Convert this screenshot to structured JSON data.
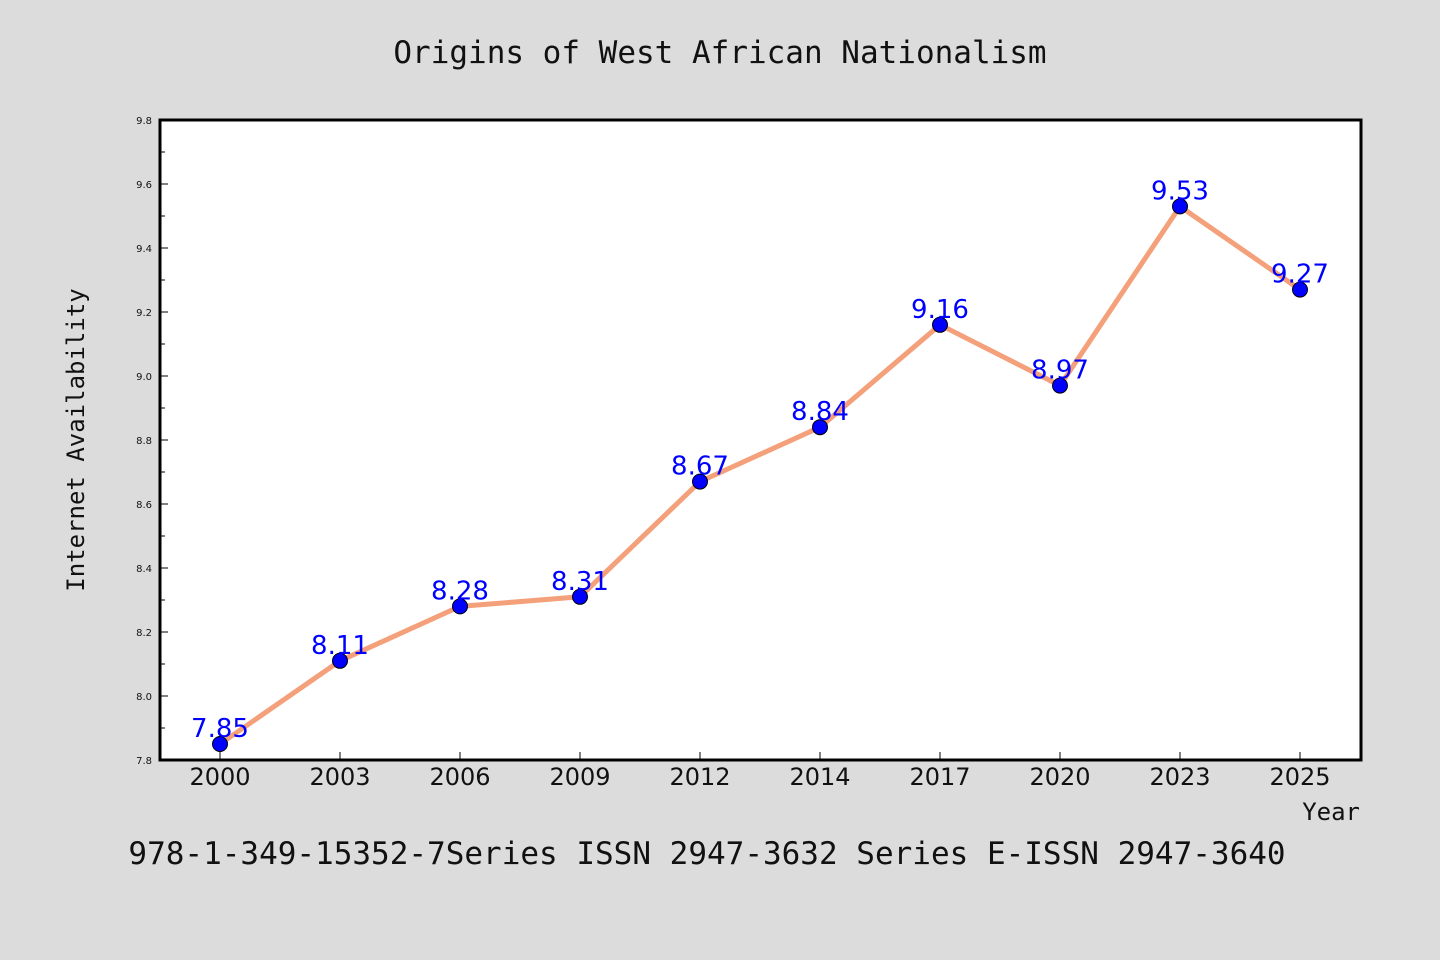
{
  "footer": "978-1-349-15352-7Series ISSN 2947-3632 Series E-ISSN 2947-3640",
  "chart_data": {
    "type": "line",
    "title": "Origins of West African Nationalism",
    "xlabel": "Year",
    "ylabel": "Internet Availability",
    "categories": [
      "2000",
      "2003",
      "2006",
      "2009",
      "2012",
      "2014",
      "2017",
      "2020",
      "2023",
      "2025"
    ],
    "series": [
      {
        "values": [
          7.85,
          8.11,
          8.28,
          8.31,
          8.67,
          8.84,
          9.16,
          8.97,
          9.53,
          9.27
        ],
        "value_labels": [
          "7.85",
          "8.11",
          "8.28",
          "8.31",
          "8.67",
          "8.84",
          "9.16",
          "8.97",
          "9.53",
          "9.27"
        ]
      }
    ],
    "ylim": [
      7.8,
      9.8
    ],
    "yticks": [
      "7.8",
      "8.0",
      "8.2",
      "8.4",
      "8.6",
      "8.8",
      "9.0",
      "9.2",
      "9.4",
      "9.6",
      "9.8"
    ],
    "grid": false,
    "legend": "none",
    "colors": {
      "line": "#f4a07a",
      "marker": "#0000ff",
      "labels": "#0000ff",
      "background": "#dcdcdc",
      "plot_background": "#ffffff"
    }
  }
}
